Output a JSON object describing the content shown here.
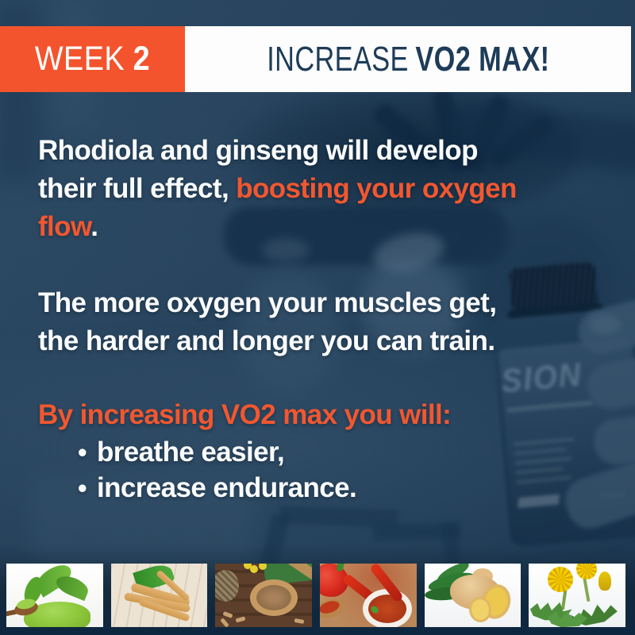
{
  "colors": {
    "accent_orange": "#F4542D",
    "navy_background": "#24425C",
    "header_text_navy": "#1E3C58",
    "body_text_white": "#FAFBFC"
  },
  "header": {
    "week_label": "WEEK",
    "week_number": "2",
    "title_prefix": "INCREASE",
    "title_emphasis": "VO2 MAX!"
  },
  "paragraph1": {
    "line1": "Rhodiola and ginseng will develop",
    "line2_plain": "their full effect, ",
    "line2_accent": "boosting your oxygen",
    "line3_accent": "flow",
    "line3_plain": "."
  },
  "paragraph2": {
    "line1": "The more oxygen your muscles get,",
    "line2": "the harder and longer you can train."
  },
  "list": {
    "heading": "By increasing VO2 max you will:",
    "bullet_glyph": "•",
    "items": [
      "breathe easier,",
      "increase endurance."
    ]
  },
  "background_photo": {
    "bottle_label_visible_text": "SION"
  },
  "thumbnails": [
    {
      "label": "green powder with leaves and wooden spoon"
    },
    {
      "label": "ginseng roots with green leaf"
    },
    {
      "label": "dried rhodiola root on wooden spoon"
    },
    {
      "label": "red peppers and paprika bowl"
    },
    {
      "label": "ginger root with slices and leaves"
    },
    {
      "label": "dandelion flowers and leaves"
    }
  ]
}
